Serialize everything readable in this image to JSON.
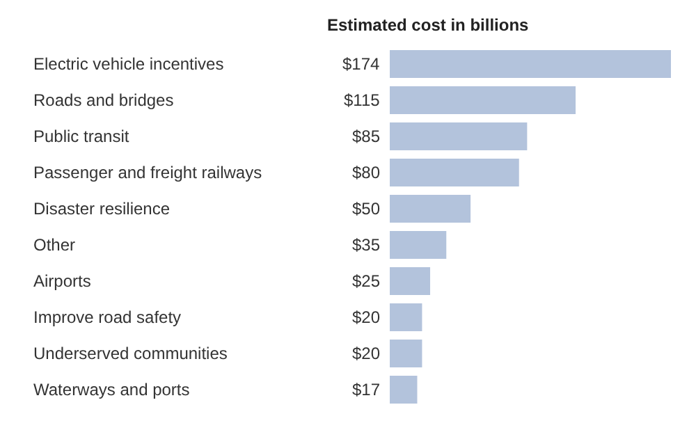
{
  "chart_data": {
    "type": "bar",
    "orientation": "horizontal",
    "title": "Estimated cost in billions",
    "categories": [
      "Electric vehicle incentives",
      "Roads and bridges",
      "Public transit",
      "Passenger and freight railways",
      "Disaster resilience",
      "Other",
      "Airports",
      "Improve road safety",
      "Underserved communities",
      "Waterways and ports"
    ],
    "values": [
      174,
      115,
      85,
      80,
      50,
      35,
      25,
      20,
      20,
      17
    ],
    "value_labels": [
      "$174",
      "$115",
      "$85",
      "$80",
      "$50",
      "$35",
      "$25",
      "$20",
      "$20",
      "$17"
    ],
    "color": "#b3c3dc",
    "xlim": [
      0,
      174
    ],
    "grid": false,
    "legend": false
  }
}
